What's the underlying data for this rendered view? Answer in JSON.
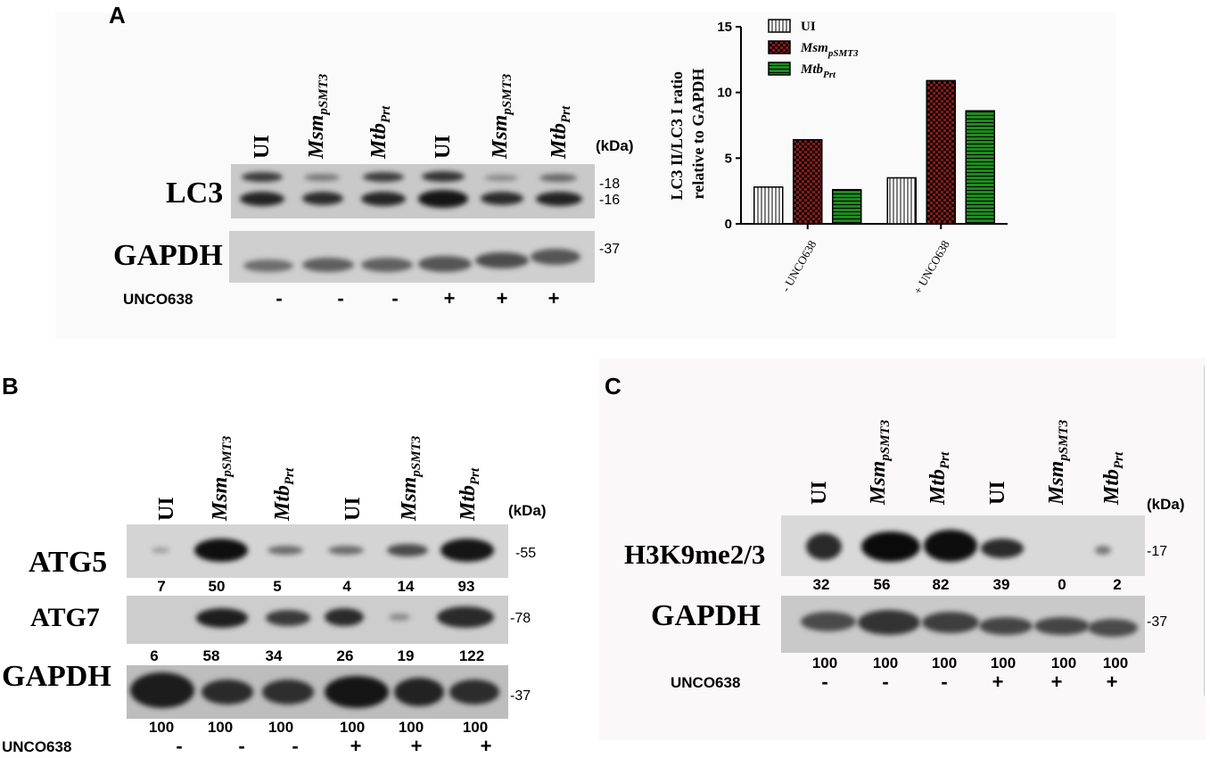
{
  "panels": {
    "a": {
      "letter": "A",
      "lanes": [
        {
          "main": "UI",
          "sub": ""
        },
        {
          "main": "Msm",
          "sub": "pSMT3"
        },
        {
          "main": "Mtb",
          "sub": "Prt"
        },
        {
          "main": "UI",
          "sub": ""
        },
        {
          "main": "Msm",
          "sub": "pSMT3"
        },
        {
          "main": "Mtb",
          "sub": "Prt"
        }
      ],
      "kda_label": "(kDa)",
      "rows": [
        {
          "label": "LC3",
          "markers": [
            "-18",
            "-16"
          ]
        },
        {
          "label": "GAPDH",
          "markers": [
            "-37"
          ]
        }
      ],
      "treatment_label": "UNCO638",
      "treatment_signs": [
        "-",
        "-",
        "-",
        "+",
        "+",
        "+"
      ]
    },
    "b": {
      "letter": "B",
      "lanes": [
        {
          "main": "UI",
          "sub": ""
        },
        {
          "main": "Msm",
          "sub": "pSMT3"
        },
        {
          "main": "Mtb",
          "sub": "Prt"
        },
        {
          "main": "UI",
          "sub": ""
        },
        {
          "main": "Msm",
          "sub": "pSMT3"
        },
        {
          "main": "Mtb",
          "sub": "Prt"
        }
      ],
      "kda_label": "(kDa)",
      "rows": [
        {
          "label": "ATG5",
          "marker": "-55",
          "quant": [
            "7",
            "50",
            "5",
            "4",
            "14",
            "93"
          ]
        },
        {
          "label": "ATG7",
          "marker": "-78",
          "quant": [
            "6",
            "58",
            "34",
            "26",
            "19",
            "122"
          ]
        },
        {
          "label": "GAPDH",
          "marker": "-37",
          "quant": [
            "100",
            "100",
            "100",
            "100",
            "100",
            "100"
          ]
        }
      ],
      "treatment_label": "UNCO638",
      "treatment_signs": [
        "-",
        "-",
        "-",
        "+",
        "+",
        "+"
      ]
    },
    "c": {
      "letter": "C",
      "lanes": [
        {
          "main": "UI",
          "sub": ""
        },
        {
          "main": "Msm",
          "sub": "pSMT3"
        },
        {
          "main": "Mtb",
          "sub": "Prt"
        },
        {
          "main": "UI",
          "sub": ""
        },
        {
          "main": "Msm",
          "sub": "pSMT3"
        },
        {
          "main": "Mtb",
          "sub": "Prt"
        }
      ],
      "kda_label": "(kDa)",
      "rows": [
        {
          "label": "H3K9me2/3",
          "marker": "-17",
          "quant": [
            "32",
            "56",
            "82",
            "39",
            "0",
            "2"
          ]
        },
        {
          "label": "GAPDH",
          "marker": "-37",
          "quant": [
            "100",
            "100",
            "100",
            "100",
            "100",
            "100"
          ]
        }
      ],
      "treatment_label": "UNCO638",
      "treatment_signs": [
        "-",
        "-",
        "-",
        "+",
        "+",
        "+"
      ]
    }
  },
  "chart_data": {
    "type": "bar",
    "ylabel_line1": "LC3 II/LC3 I ratio",
    "ylabel_line2": "relative to GAPDH",
    "ylim": [
      0,
      15
    ],
    "yticks": [
      "0",
      "5",
      "10",
      "15"
    ],
    "categories": [
      "- UNCO638",
      "+ UNCO638"
    ],
    "legend_position": "top-left",
    "series": [
      {
        "name": "UI",
        "sub": "",
        "values": [
          2.8,
          3.5
        ],
        "fill": "#ffffff",
        "pattern": "vertical-lines"
      },
      {
        "name": "Msm",
        "sub": "pSMT3",
        "values": [
          6.4,
          10.9
        ],
        "fill": "#8b1a1a",
        "pattern": "checker"
      },
      {
        "name": "Mtb",
        "sub": "Prt",
        "values": [
          2.6,
          8.6
        ],
        "fill": "#1e8a1e",
        "pattern": "horizontal-lines"
      }
    ]
  }
}
